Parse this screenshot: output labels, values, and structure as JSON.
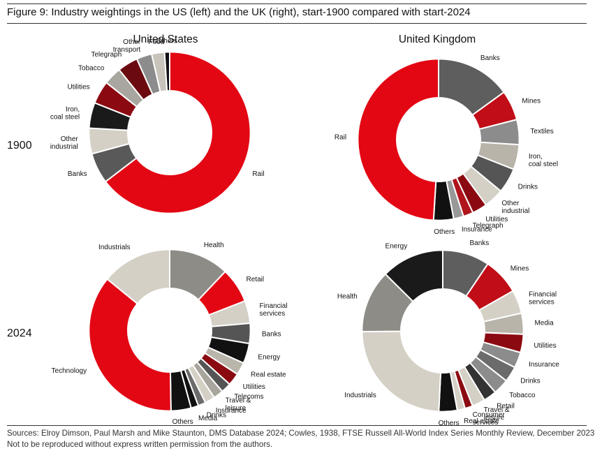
{
  "figure_title": "Figure 9: Industry weightings in the US (left) and the UK (right), start-1900 compared with start-2024",
  "columns": [
    "United States",
    "United Kingdom"
  ],
  "rows": [
    "1900",
    "2024"
  ],
  "source_lines": [
    "Sources: Elroy Dimson, Paul Marsh and Mike Staunton, DMS Database 2024; Cowles, 1938, FTSE Russell All-World Index Series Monthly Review, December 2023.",
    "Not to be reproduced without express written permission from the authors."
  ],
  "chart_data": [
    {
      "type": "pie",
      "variant": "donut",
      "title": "United States",
      "year": "1900",
      "start_position": "top, clockwise",
      "slices": [
        {
          "label": "Rail",
          "value": 63,
          "color": "#e30613"
        },
        {
          "label": "Banks",
          "value": 6,
          "color": "#595959"
        },
        {
          "label": "Other industrial",
          "value": 5,
          "color": "#d4d0c6"
        },
        {
          "label": "Iron, coal steel",
          "value": 5,
          "color": "#1a1a1a"
        },
        {
          "label": "Utilities",
          "value": 4.5,
          "color": "#8b0a11"
        },
        {
          "label": "Tobacco",
          "value": 3.5,
          "color": "#a9a69f"
        },
        {
          "label": "Telegraph",
          "value": 4,
          "color": "#6b0b10"
        },
        {
          "label": "Other transport",
          "value": 3,
          "color": "#8c8c8c"
        },
        {
          "label": "Food",
          "value": 2.5,
          "color": "#c8c4bb"
        },
        {
          "label": "Others",
          "value": 1,
          "color": "#111111"
        }
      ]
    },
    {
      "type": "pie",
      "variant": "donut",
      "title": "United Kingdom",
      "year": "1900",
      "start_position": "top, clockwise",
      "slices": [
        {
          "label": "Banks",
          "value": 15,
          "color": "#5e5e5e"
        },
        {
          "label": "Mines",
          "value": 6,
          "color": "#c00d17"
        },
        {
          "label": "Textiles",
          "value": 5,
          "color": "#8c8c8c"
        },
        {
          "label": "Iron, coal steel",
          "value": 5,
          "color": "#b8b4aa"
        },
        {
          "label": "Drinks",
          "value": 5,
          "color": "#555555"
        },
        {
          "label": "Other industrial",
          "value": 4,
          "color": "#d4d0c6"
        },
        {
          "label": "Utilities",
          "value": 3,
          "color": "#8b0a11"
        },
        {
          "label": "Telegraph",
          "value": 2,
          "color": "#b0141c"
        },
        {
          "label": "Insurance",
          "value": 2,
          "color": "#999999"
        },
        {
          "label": "Others",
          "value": 4,
          "color": "#111111"
        },
        {
          "label": "Rail",
          "value": 49,
          "color": "#e30613"
        }
      ]
    },
    {
      "type": "pie",
      "variant": "donut",
      "title": "United States",
      "year": "2024",
      "start_position": "top, clockwise",
      "slices": [
        {
          "label": "Health",
          "value": 12,
          "color": "#8e8c86"
        },
        {
          "label": "Retail",
          "value": 7,
          "color": "#e30613"
        },
        {
          "label": "Financial services",
          "value": 4.5,
          "color": "#d4d0c6"
        },
        {
          "label": "Banks",
          "value": 4,
          "color": "#555555"
        },
        {
          "label": "Energy",
          "value": 4,
          "color": "#111111"
        },
        {
          "label": "Real estate",
          "value": 2.5,
          "color": "#b9b5ab"
        },
        {
          "label": "Utilities",
          "value": 2.5,
          "color": "#8b0a11"
        },
        {
          "label": "Telecoms",
          "value": 2,
          "color": "#555555"
        },
        {
          "label": "Travel & leisure",
          "value": 2,
          "color": "#a8a59d"
        },
        {
          "label": "Insurance",
          "value": 2,
          "color": "#d4d0c6"
        },
        {
          "label": "Drinks",
          "value": 1.5,
          "color": "#6b6b6b"
        },
        {
          "label": "Media",
          "value": 1.5,
          "color": "#111111"
        },
        {
          "label": "Others",
          "value": 4,
          "color": "#111111"
        },
        {
          "label": "Technology",
          "value": 36,
          "color": "#e30613"
        },
        {
          "label": "Industrials",
          "value": 14,
          "color": "#d4d0c6"
        }
      ]
    },
    {
      "type": "pie",
      "variant": "donut",
      "title": "United Kingdom",
      "year": "2024",
      "start_position": "top, clockwise",
      "slices": [
        {
          "label": "Banks",
          "value": 9,
          "color": "#5e5e5e"
        },
        {
          "label": "Mines",
          "value": 7,
          "color": "#c00d17"
        },
        {
          "label": "Financial services",
          "value": 4.5,
          "color": "#d4d0c6"
        },
        {
          "label": "Media",
          "value": 4,
          "color": "#b8b4aa"
        },
        {
          "label": "Utilities",
          "value": 3.5,
          "color": "#8b0a11"
        },
        {
          "label": "Insurance",
          "value": 3,
          "color": "#8c8c8c"
        },
        {
          "label": "Drinks",
          "value": 3,
          "color": "#6b6b6b"
        },
        {
          "label": "Tobacco",
          "value": 3,
          "color": "#8c8c8c"
        },
        {
          "label": "Retail",
          "value": 2.5,
          "color": "#333333"
        },
        {
          "label": "Travel & leisure",
          "value": 2.5,
          "color": "#d4d0c6"
        },
        {
          "label": "Consumer services",
          "value": 1.5,
          "color": "#8b0a11"
        },
        {
          "label": "Real estate",
          "value": 1.5,
          "color": "#d4d0c6"
        },
        {
          "label": "Others",
          "value": 3.5,
          "color": "#111111"
        },
        {
          "label": "Industrials",
          "value": 23,
          "color": "#d4d0c6"
        },
        {
          "label": "Health",
          "value": 12,
          "color": "#8e8c86"
        },
        {
          "label": "Energy",
          "value": 12,
          "color": "#1a1a1a"
        }
      ]
    }
  ]
}
